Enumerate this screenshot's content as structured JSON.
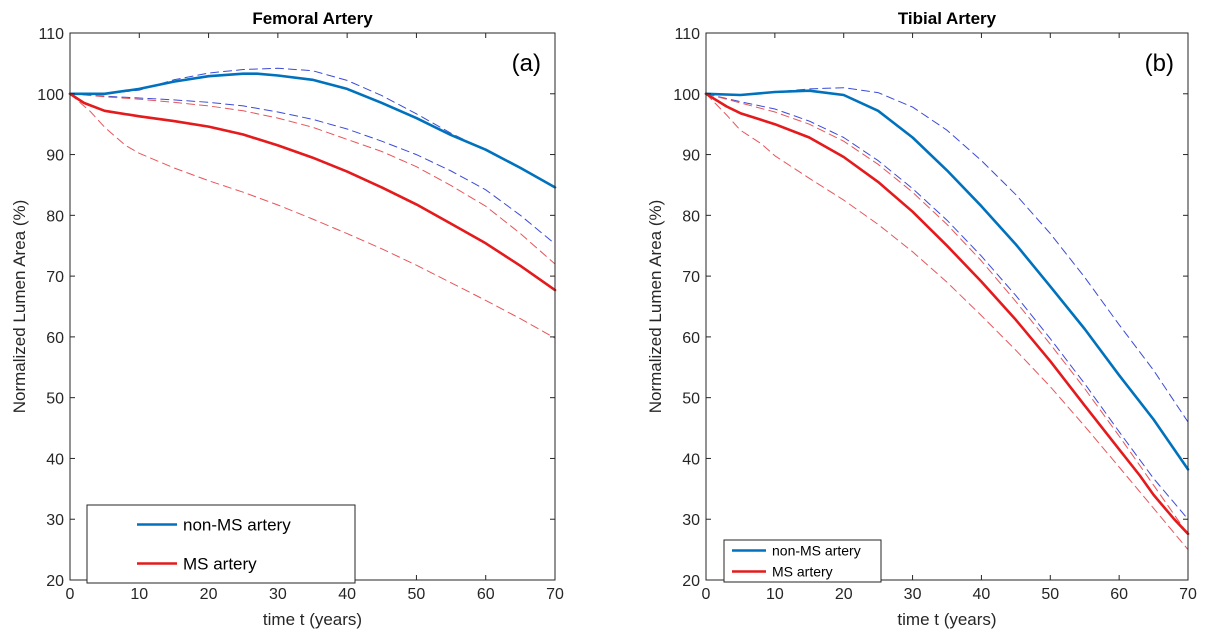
{
  "chart_data": [
    {
      "type": "line",
      "title": "Femoral Artery",
      "panel_label": "(a)",
      "xlabel": "time t (years)",
      "ylabel": "Normalized Lumen Area (%)",
      "xlim": [
        0,
        70
      ],
      "ylim": [
        20,
        110
      ],
      "xticks": [
        0,
        10,
        20,
        30,
        40,
        50,
        60,
        70
      ],
      "yticks": [
        20,
        30,
        40,
        50,
        60,
        70,
        80,
        90,
        100,
        110
      ],
      "grid": false,
      "legend_position": "bottom-left",
      "legend": [
        "non-MS artery",
        "MS artery"
      ],
      "series": [
        {
          "name": "non-MS artery",
          "style": "solid",
          "color": "#0072bd",
          "x": [
            0,
            5,
            10,
            15,
            20,
            25,
            27,
            30,
            35,
            40,
            45,
            50,
            55,
            60,
            65,
            70
          ],
          "y": [
            100,
            100,
            100.8,
            102,
            102.9,
            103.3,
            103.3,
            103,
            102.3,
            100.8,
            98.5,
            96,
            93.2,
            90.8,
            87.8,
            84.6
          ]
        },
        {
          "name": "MS artery",
          "style": "solid",
          "color": "#e41a1c",
          "x": [
            0,
            2,
            5,
            10,
            15,
            20,
            25,
            30,
            35,
            40,
            45,
            50,
            55,
            60,
            65,
            70
          ],
          "y": [
            100,
            98.5,
            97.2,
            96.3,
            95.5,
            94.6,
            93.3,
            91.5,
            89.5,
            87.2,
            84.6,
            81.8,
            78.6,
            75.4,
            71.7,
            67.7
          ]
        },
        {
          "style": "dashed",
          "color": "#3b4bd8",
          "x": [
            0,
            5,
            10,
            15,
            20,
            25,
            30,
            35,
            40,
            45,
            50,
            55,
            60,
            65,
            70
          ],
          "y": [
            100,
            100,
            100.6,
            102.3,
            103.4,
            104,
            104.2,
            103.8,
            102.2,
            99.7,
            96.7,
            93.5,
            90.7,
            87.8,
            84.6
          ]
        },
        {
          "style": "dashed",
          "color": "#3b4bd8",
          "x": [
            0,
            5,
            10,
            15,
            20,
            25,
            30,
            35,
            40,
            45,
            50,
            55,
            60,
            65,
            70
          ],
          "y": [
            100,
            99.6,
            99.3,
            99,
            98.6,
            98,
            97,
            95.8,
            94.2,
            92.2,
            90,
            87.3,
            84.2,
            80,
            75.3
          ]
        },
        {
          "style": "dashed",
          "color": "#e8555a",
          "x": [
            0,
            5,
            10,
            15,
            20,
            25,
            30,
            35,
            40,
            45,
            50,
            55,
            60,
            65,
            70
          ],
          "y": [
            100,
            99.5,
            99.1,
            98.6,
            98,
            97.2,
            96,
            94.5,
            92.5,
            90.5,
            88,
            84.9,
            81.5,
            77,
            72
          ]
        },
        {
          "style": "dashed",
          "color": "#e8555a",
          "x": [
            0,
            3,
            5,
            8,
            10,
            15,
            20,
            25,
            30,
            35,
            40,
            45,
            50,
            55,
            60,
            65,
            70
          ],
          "y": [
            100,
            97,
            94.5,
            91.5,
            90.2,
            87.8,
            85.7,
            83.8,
            81.7,
            79.4,
            77,
            74.5,
            71.8,
            68.9,
            66,
            63,
            59.8
          ]
        }
      ]
    },
    {
      "type": "line",
      "title": "Tibial Artery",
      "panel_label": "(b)",
      "xlabel": "time t (years)",
      "ylabel": "Normalized Lumen Area (%)",
      "xlim": [
        0,
        70
      ],
      "ylim": [
        20,
        110
      ],
      "xticks": [
        0,
        10,
        20,
        30,
        40,
        50,
        60,
        70
      ],
      "yticks": [
        20,
        30,
        40,
        50,
        60,
        70,
        80,
        90,
        100,
        110
      ],
      "grid": false,
      "legend_position": "bottom-left",
      "legend": [
        "non-MS artery",
        "MS artery"
      ],
      "series": [
        {
          "name": "non-MS artery",
          "style": "solid",
          "color": "#0072bd",
          "x": [
            0,
            5,
            10,
            15,
            20,
            25,
            30,
            35,
            40,
            45,
            50,
            55,
            60,
            65,
            70
          ],
          "y": [
            100,
            99.8,
            100.3,
            100.5,
            99.8,
            97.2,
            92.8,
            87.4,
            81.5,
            75.2,
            68.3,
            61.3,
            53.7,
            46.4,
            38.2
          ]
        },
        {
          "name": "MS artery",
          "style": "solid",
          "color": "#e41a1c",
          "x": [
            0,
            3,
            5,
            10,
            15,
            20,
            25,
            30,
            35,
            40,
            45,
            50,
            55,
            60,
            63,
            65,
            68,
            70
          ],
          "y": [
            100,
            97.9,
            96.8,
            95,
            92.8,
            89.6,
            85.5,
            80.6,
            75,
            69.1,
            62.8,
            56,
            48.7,
            41.5,
            37.2,
            34,
            30,
            27.6
          ]
        },
        {
          "style": "dashed",
          "color": "#3b4bd8",
          "x": [
            0,
            5,
            10,
            15,
            20,
            25,
            30,
            35,
            40,
            45,
            50,
            55,
            60,
            65,
            70
          ],
          "y": [
            100,
            99.8,
            100.3,
            100.8,
            101,
            100.2,
            97.8,
            94,
            89,
            83.4,
            77,
            69.8,
            62,
            54.5,
            46
          ]
        },
        {
          "style": "dashed",
          "color": "#3b4bd8",
          "x": [
            0,
            5,
            10,
            15,
            20,
            25,
            30,
            35,
            40,
            45,
            50,
            55,
            60,
            65,
            70
          ],
          "y": [
            100,
            98.7,
            97.5,
            95.5,
            92.8,
            89,
            84.4,
            79.2,
            73.3,
            66.8,
            59.7,
            52.3,
            44.4,
            36.7,
            30
          ]
        },
        {
          "style": "dashed",
          "color": "#e8555a",
          "x": [
            0,
            5,
            10,
            15,
            20,
            25,
            30,
            35,
            40,
            45,
            50,
            55,
            60,
            65,
            70
          ],
          "y": [
            100,
            98.5,
            97,
            95,
            92.2,
            88.4,
            83.8,
            78.5,
            72.5,
            65.8,
            58.8,
            51.5,
            43.7,
            35.6,
            27.5
          ]
        },
        {
          "style": "dashed",
          "color": "#e8555a",
          "x": [
            0,
            3,
            5,
            8,
            10,
            15,
            20,
            25,
            30,
            35,
            40,
            45,
            50,
            55,
            60,
            65,
            70
          ],
          "y": [
            100,
            96.5,
            94,
            91.8,
            89.8,
            86.1,
            82.5,
            78.5,
            74,
            69,
            63.5,
            57.8,
            51.8,
            45.3,
            38.6,
            31.8,
            25
          ]
        }
      ]
    }
  ]
}
